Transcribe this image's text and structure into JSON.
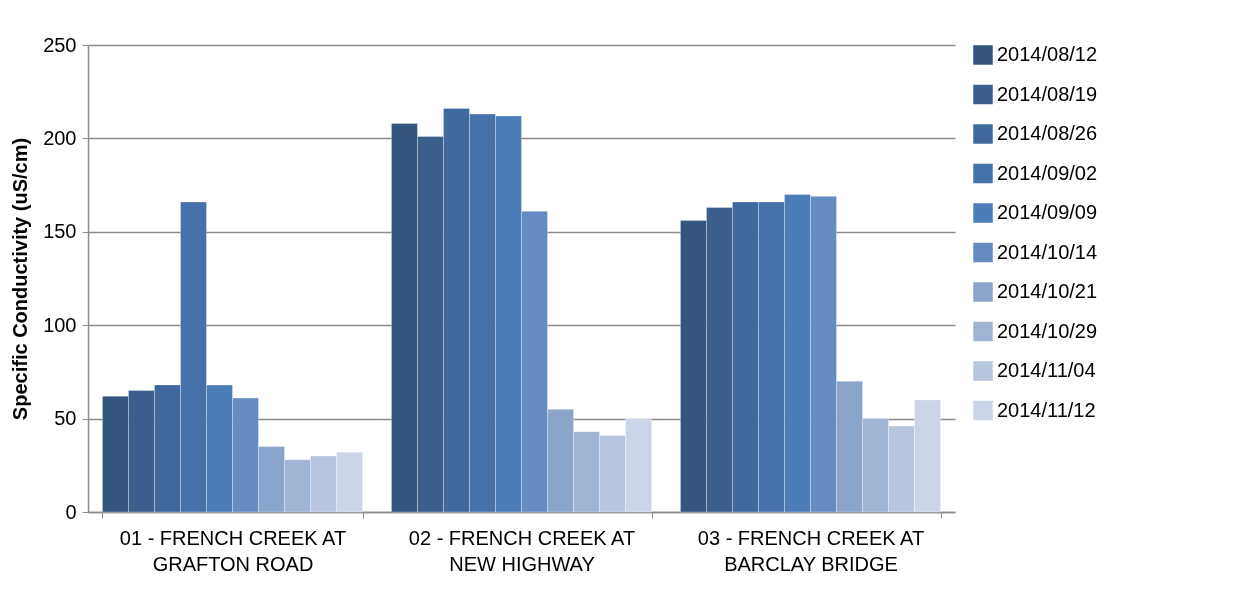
{
  "chart_data": {
    "type": "bar",
    "ylabel": "Specific Conductivity (uS/cm)",
    "categories": [
      "01 - FRENCH CREEK AT GRAFTON ROAD",
      "02 - FRENCH CREEK AT NEW HIGHWAY",
      "03 - FRENCH CREEK AT BARCLAY BRIDGE"
    ],
    "ylim": [
      0,
      250
    ],
    "yticks": [
      0,
      50,
      100,
      150,
      200,
      250
    ],
    "grid": "y",
    "legend": "right",
    "series": [
      {
        "name": "2014/08/12",
        "color": "#34557c",
        "values": [
          62,
          208,
          156
        ]
      },
      {
        "name": "2014/08/19",
        "color": "#3a5f8e",
        "values": [
          65,
          201,
          163
        ]
      },
      {
        "name": "2014/08/26",
        "color": "#3f699e",
        "values": [
          68,
          216,
          166
        ]
      },
      {
        "name": "2014/09/02",
        "color": "#4572aa",
        "values": [
          166,
          213,
          166
        ]
      },
      {
        "name": "2014/09/09",
        "color": "#4b7db8",
        "values": [
          68,
          212,
          170
        ]
      },
      {
        "name": "2014/10/14",
        "color": "#658cc2",
        "values": [
          61,
          161,
          169
        ]
      },
      {
        "name": "2014/10/21",
        "color": "#8aa4cc",
        "values": [
          35,
          55,
          70
        ]
      },
      {
        "name": "2014/10/29",
        "color": "#a2b4d5",
        "values": [
          28,
          43,
          50
        ]
      },
      {
        "name": "2014/11/04",
        "color": "#b8c5de",
        "values": [
          30,
          41,
          46
        ]
      },
      {
        "name": "2014/11/12",
        "color": "#cbd5e7",
        "values": [
          32,
          50,
          60
        ]
      }
    ]
  }
}
